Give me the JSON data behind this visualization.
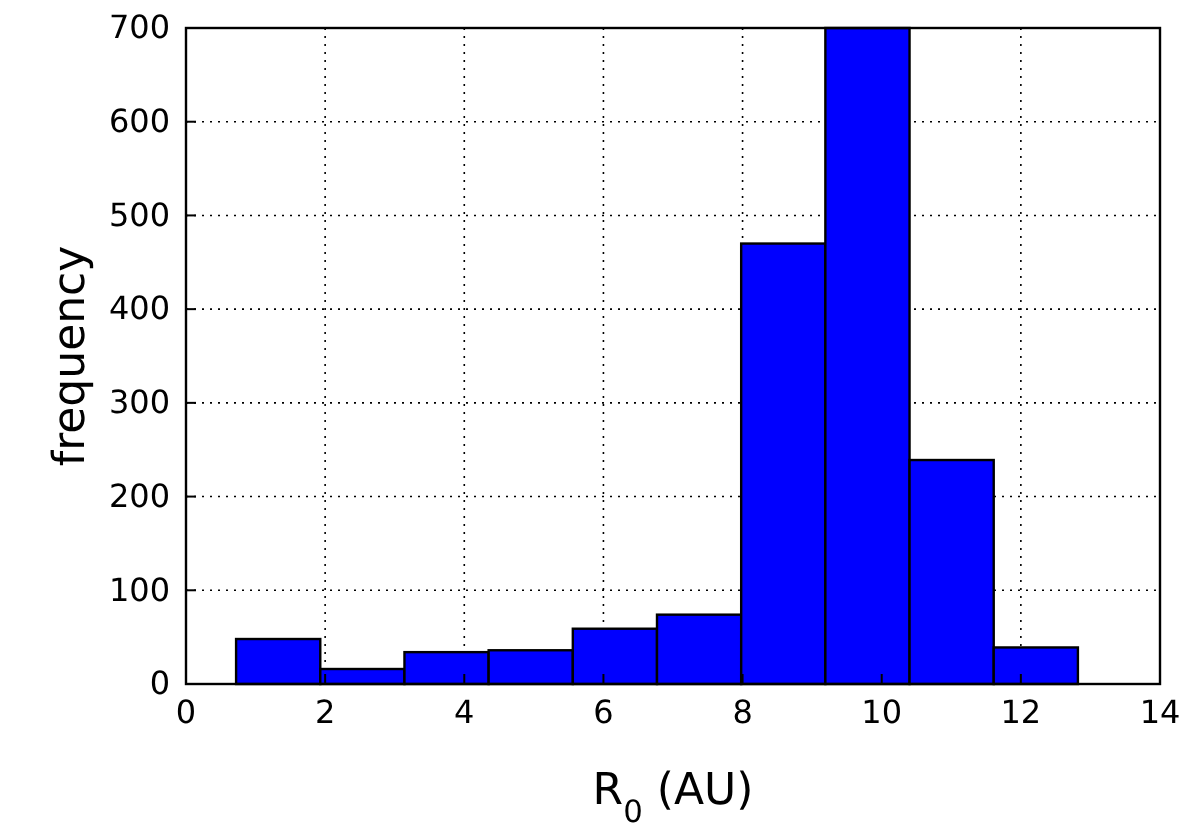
{
  "chart_data": {
    "type": "histogram",
    "xlabel": "R$_{0}$ (AU)",
    "ylabel": "frequency",
    "bins": [
      0.72,
      1.93,
      3.14,
      4.35,
      5.56,
      6.77,
      7.98,
      9.19,
      10.4,
      11.61,
      12.82
    ],
    "values": [
      48,
      16,
      34,
      36,
      59,
      74,
      470,
      700,
      239,
      39
    ],
    "color": "#0000ff",
    "xlim": [
      0,
      14
    ],
    "xticks": [
      0,
      2,
      4,
      6,
      8,
      10,
      12,
      14
    ],
    "ylim": [
      0,
      700
    ],
    "yticks": [
      0,
      100,
      200,
      300,
      400,
      500,
      600,
      700
    ],
    "grid": true
  }
}
